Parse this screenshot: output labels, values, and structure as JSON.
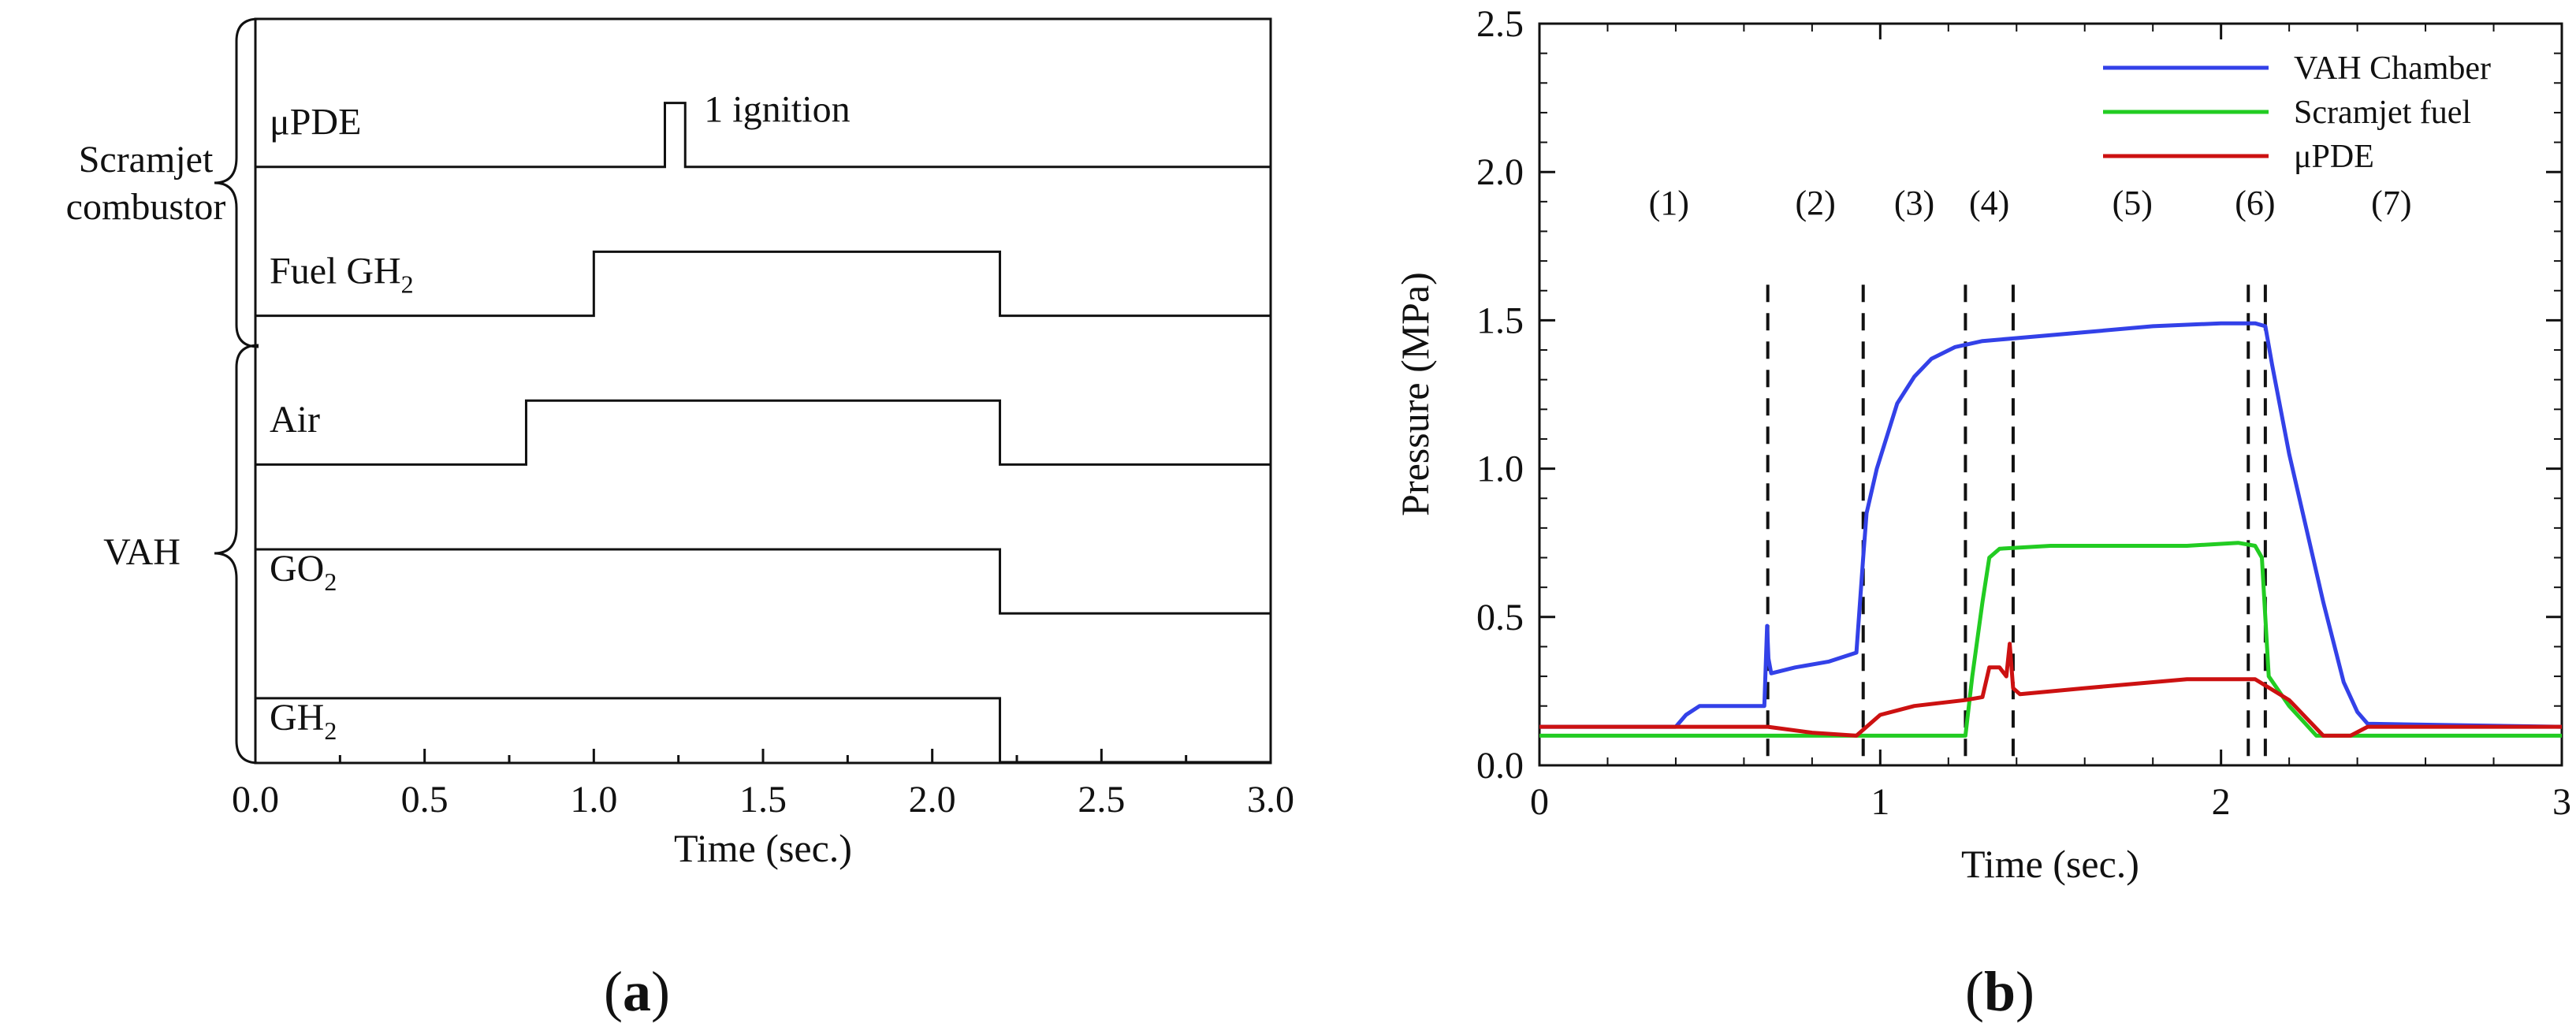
{
  "chart_data": [
    {
      "panel": "a",
      "type": "line",
      "subtitle": "(a)",
      "subtitle_bold": "a",
      "xlabel": "Time (sec.)",
      "xlim": [
        0.0,
        3.0
      ],
      "xticks": [
        "0.0",
        "0.5",
        "1.0",
        "1.5",
        "2.0",
        "2.5",
        "3.0"
      ],
      "xtick_values": [
        0.0,
        0.5,
        1.0,
        1.5,
        2.0,
        2.5,
        3.0
      ],
      "groups": [
        {
          "label_lines": [
            "Scramjet",
            "combustor"
          ],
          "rows": [
            0,
            1
          ]
        },
        {
          "label": "VAH",
          "rows": [
            2,
            3,
            4
          ]
        }
      ],
      "rows": [
        {
          "label": "μPDE",
          "on": 1.21,
          "off": 1.27,
          "annotation": "1 ignition"
        },
        {
          "label": "Fuel GH",
          "subscript": "2",
          "on": 1.0,
          "off": 2.2
        },
        {
          "label": "Air",
          "on": 0.8,
          "off": 2.2
        },
        {
          "label": "GO",
          "subscript": "2",
          "on": 0.0,
          "off": 2.2
        },
        {
          "label": "GH",
          "subscript": "2",
          "on": 0.0,
          "off": 2.2
        }
      ]
    },
    {
      "panel": "b",
      "type": "line",
      "subtitle": "(b)",
      "subtitle_bold": "b",
      "xlabel": "Time (sec.)",
      "ylabel": "Pressure (MPa)",
      "xlim": [
        0,
        3
      ],
      "ylim": [
        0.0,
        2.5
      ],
      "xticks": [
        "0",
        "1",
        "2",
        "3"
      ],
      "xtick_values": [
        0,
        1,
        2,
        3
      ],
      "yticks": [
        "0.0",
        "0.5",
        "1.0",
        "1.5",
        "2.0",
        "2.5"
      ],
      "ytick_values": [
        0.0,
        0.5,
        1.0,
        1.5,
        2.0,
        2.5
      ],
      "legend_position": "top-right",
      "phase_boundaries": [
        0.67,
        0.95,
        1.25,
        1.39,
        2.08,
        2.13
      ],
      "phases": [
        {
          "label": "(1)",
          "x": 0.38
        },
        {
          "label": "(2)",
          "x": 0.81
        },
        {
          "label": "(3)",
          "x": 1.1
        },
        {
          "label": "(4)",
          "x": 1.32
        },
        {
          "label": "(5)",
          "x": 1.74
        },
        {
          "label": "(6)",
          "x": 2.1
        },
        {
          "label": "(7)",
          "x": 2.5
        }
      ],
      "phase_label_y": 1.9,
      "series": [
        {
          "name": "VAH Chamber",
          "color": "#3341e8",
          "x": [
            0,
            0.4,
            0.43,
            0.47,
            0.55,
            0.66,
            0.668,
            0.672,
            0.68,
            0.75,
            0.85,
            0.93,
            0.95,
            0.96,
            0.99,
            1.05,
            1.1,
            1.15,
            1.22,
            1.3,
            1.4,
            1.6,
            1.8,
            2.0,
            2.1,
            2.13,
            2.15,
            2.2,
            2.3,
            2.36,
            2.4,
            2.43,
            3.0
          ],
          "y": [
            0.13,
            0.13,
            0.17,
            0.2,
            0.2,
            0.2,
            0.47,
            0.36,
            0.31,
            0.33,
            0.35,
            0.38,
            0.7,
            0.85,
            1.0,
            1.22,
            1.31,
            1.37,
            1.41,
            1.43,
            1.44,
            1.46,
            1.48,
            1.49,
            1.49,
            1.48,
            1.35,
            1.05,
            0.55,
            0.28,
            0.18,
            0.14,
            0.13
          ]
        },
        {
          "name": "Scramjet fuel",
          "color": "#22cc22",
          "x": [
            0,
            1.25,
            1.27,
            1.3,
            1.32,
            1.35,
            1.5,
            1.7,
            1.9,
            2.05,
            2.1,
            2.12,
            2.14,
            2.2,
            2.28,
            3.0
          ],
          "y": [
            0.1,
            0.1,
            0.3,
            0.55,
            0.7,
            0.73,
            0.74,
            0.74,
            0.74,
            0.75,
            0.74,
            0.7,
            0.3,
            0.2,
            0.1,
            0.1
          ]
        },
        {
          "name": "μPDE",
          "color": "#cc1111",
          "x": [
            0,
            0.67,
            0.8,
            0.93,
            1.0,
            1.1,
            1.25,
            1.3,
            1.32,
            1.35,
            1.37,
            1.38,
            1.39,
            1.41,
            1.6,
            1.9,
            2.1,
            2.2,
            2.3,
            2.38,
            2.43,
            3.0
          ],
          "y": [
            0.13,
            0.13,
            0.11,
            0.1,
            0.17,
            0.2,
            0.22,
            0.23,
            0.33,
            0.33,
            0.3,
            0.41,
            0.26,
            0.24,
            0.26,
            0.29,
            0.29,
            0.22,
            0.1,
            0.1,
            0.13,
            0.13
          ]
        }
      ]
    }
  ]
}
